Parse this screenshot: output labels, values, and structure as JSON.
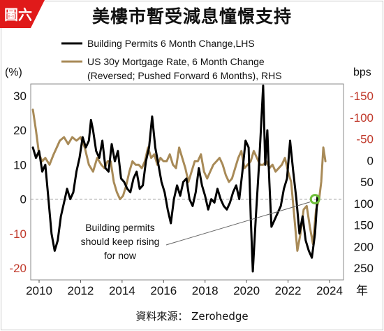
{
  "badge": {
    "text": "圖六",
    "color": "#e01a1a"
  },
  "title": "美樓市暫受減息憧憬支持",
  "source": "資料來源： Zerohedge",
  "colors": {
    "building": "#000000",
    "mortgage": "#a88a57",
    "right_axis_neg": "#c0392b",
    "marker": "#6fbf3a"
  },
  "chart_data": {
    "type": "line",
    "title": "美樓市暫受減息憧憬支持",
    "xlabel": "年",
    "x_ticks": [
      "2010",
      "2012",
      "2014",
      "2016",
      "2018",
      "2020",
      "2022",
      "2024"
    ],
    "xlim": [
      2009.5,
      2024.7
    ],
    "left_axis": {
      "label": "(%)",
      "ticks": [
        "30",
        "20",
        "10",
        "0",
        "-10",
        "-20"
      ],
      "ylim": [
        -22,
        32
      ]
    },
    "right_axis": {
      "label": "bps",
      "ticks": [
        "-150",
        "-100",
        "-50",
        "0",
        "50",
        "100",
        "150",
        "200",
        "250"
      ],
      "reversed": true
    },
    "legend": [
      "Building Permits 6 Month Change,LHS",
      "US 30y Mortgage Rate, 6 Month Change",
      "(Reversed; Pushed Forward 6 Months), RHS"
    ],
    "annotation": [
      "Building permits",
      "should keep rising",
      "for now"
    ],
    "zero_line": 0,
    "series": [
      {
        "name": "Building Permits 6 Month Change,LHS",
        "axis": "left",
        "x": [
          2009.7,
          2009.85,
          2010.0,
          2010.15,
          2010.3,
          2010.45,
          2010.6,
          2010.75,
          2010.9,
          2011.05,
          2011.2,
          2011.35,
          2011.5,
          2011.65,
          2011.8,
          2011.95,
          2012.1,
          2012.25,
          2012.4,
          2012.5,
          2012.6,
          2012.75,
          2012.9,
          2013.05,
          2013.2,
          2013.35,
          2013.5,
          2013.65,
          2013.8,
          2013.95,
          2014.1,
          2014.25,
          2014.4,
          2014.55,
          2014.7,
          2014.85,
          2015.0,
          2015.15,
          2015.3,
          2015.45,
          2015.6,
          2015.75,
          2015.9,
          2016.05,
          2016.2,
          2016.35,
          2016.5,
          2016.65,
          2016.8,
          2016.95,
          2017.1,
          2017.25,
          2017.4,
          2017.55,
          2017.7,
          2017.85,
          2018.0,
          2018.15,
          2018.3,
          2018.45,
          2018.6,
          2018.75,
          2018.9,
          2019.05,
          2019.2,
          2019.35,
          2019.5,
          2019.65,
          2019.8,
          2019.95,
          2020.1,
          2020.2,
          2020.3,
          2020.45,
          2020.6,
          2020.7,
          2020.8,
          2020.9,
          2021.0,
          2021.1,
          2021.2,
          2021.35,
          2021.5,
          2021.65,
          2021.8,
          2021.95,
          2022.1,
          2022.25,
          2022.4,
          2022.55,
          2022.7,
          2022.85,
          2023.0,
          2023.15,
          2023.3,
          2023.42
        ],
        "values": [
          15,
          12,
          14,
          8,
          10,
          0,
          -10,
          -15,
          -12,
          -5,
          -1,
          3,
          0,
          2,
          8,
          12,
          18,
          15,
          17,
          23,
          20,
          14,
          12,
          17,
          9,
          8,
          16,
          11,
          14,
          6,
          5,
          3,
          2,
          6,
          8,
          3,
          4,
          11,
          15,
          24,
          15,
          10,
          5,
          2,
          -3,
          -7,
          0,
          4,
          1,
          5,
          6,
          0,
          -2,
          2,
          9,
          4,
          1,
          -3,
          0,
          -1,
          3,
          0,
          -2,
          -3,
          -1,
          2,
          4,
          0,
          8,
          17,
          15,
          -5,
          -21,
          -5,
          10,
          21,
          33,
          10,
          20,
          5,
          -8,
          -6,
          -4,
          -2,
          3,
          6,
          17,
          8,
          0,
          -10,
          -5,
          -12,
          -15,
          -17,
          -10,
          1
        ],
        "color": "#000000"
      },
      {
        "name": "US 30y Mortgage Rate, 6 Month Change (Reversed; Pushed Forward 6 Months), RHS",
        "axis": "left",
        "x": [
          2009.7,
          2009.85,
          2010.0,
          2010.15,
          2010.3,
          2010.5,
          2010.7,
          2010.85,
          2011.0,
          2011.2,
          2011.4,
          2011.6,
          2011.8,
          2012.0,
          2012.2,
          2012.4,
          2012.6,
          2012.8,
          2013.0,
          2013.15,
          2013.3,
          2013.45,
          2013.6,
          2013.75,
          2013.9,
          2014.05,
          2014.2,
          2014.35,
          2014.5,
          2014.65,
          2014.8,
          2014.95,
          2015.1,
          2015.25,
          2015.4,
          2015.55,
          2015.7,
          2015.85,
          2016.0,
          2016.15,
          2016.3,
          2016.45,
          2016.6,
          2016.75,
          2016.9,
          2017.05,
          2017.2,
          2017.35,
          2017.5,
          2017.65,
          2017.8,
          2017.95,
          2018.1,
          2018.25,
          2018.4,
          2018.55,
          2018.7,
          2018.85,
          2019.0,
          2019.15,
          2019.3,
          2019.45,
          2019.6,
          2019.75,
          2019.9,
          2020.05,
          2020.2,
          2020.35,
          2020.5,
          2020.65,
          2020.8,
          2020.95,
          2021.1,
          2021.25,
          2021.4,
          2021.55,
          2021.7,
          2021.85,
          2022.0,
          2022.15,
          2022.3,
          2022.45,
          2022.6,
          2022.75,
          2022.9,
          2023.05,
          2023.2,
          2023.35,
          2023.5,
          2023.6,
          2023.7,
          2023.8
        ],
        "values": [
          26,
          20,
          13,
          11,
          12,
          10,
          13,
          15,
          17,
          18,
          16,
          18,
          17,
          18,
          15,
          10,
          8,
          12,
          10,
          9,
          11,
          11,
          5,
          2,
          0,
          1,
          4,
          8,
          11,
          10,
          10,
          9,
          11,
          15,
          12,
          13,
          10,
          12,
          11,
          11,
          13,
          10,
          9,
          15,
          12,
          9,
          5,
          8,
          11,
          11,
          13,
          8,
          6,
          8,
          10,
          11,
          12,
          10,
          7,
          5,
          6,
          9,
          12,
          14,
          9,
          10,
          11,
          14,
          12,
          10,
          10,
          11,
          9,
          10,
          8,
          9,
          10,
          12,
          8,
          5,
          -5,
          -15,
          -10,
          -3,
          -2,
          -8,
          -13,
          -3,
          0,
          5,
          15,
          11
        ],
        "color": "#a88a57"
      }
    ],
    "marker": {
      "x": 2023.3,
      "value": 0
    }
  }
}
